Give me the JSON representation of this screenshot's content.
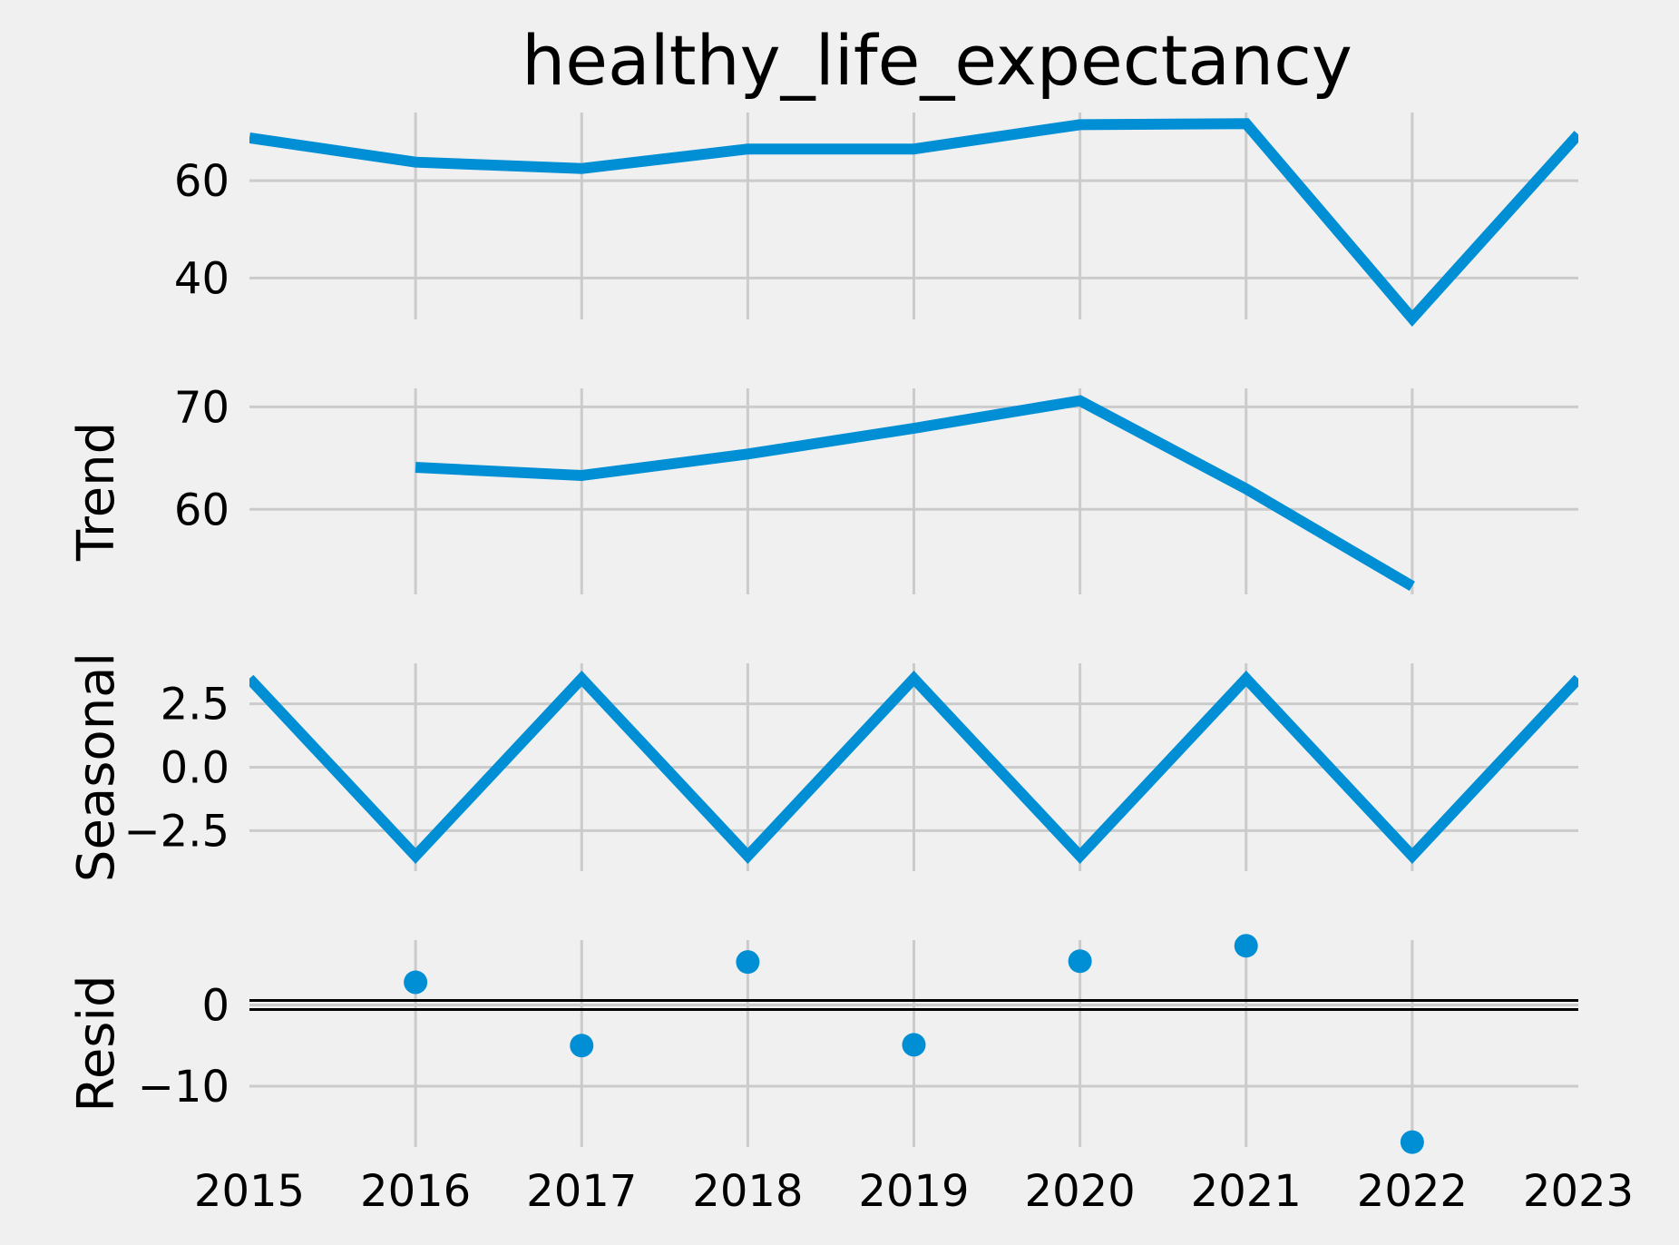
{
  "chart_data": {
    "type": "line",
    "title": "healthy_life_expectancy",
    "x": [
      2015,
      2016,
      2017,
      2018,
      2019,
      2020,
      2021,
      2022,
      2023
    ],
    "xticks": [
      "2015",
      "2016",
      "2017",
      "2018",
      "2019",
      "2020",
      "2021",
      "2022",
      "2023"
    ],
    "xlim": [
      2015,
      2023
    ],
    "colors": {
      "series": "#008fd5",
      "background": "#f0f0f0",
      "grid": "#cbcbcb"
    },
    "grid": true,
    "panels": [
      {
        "id": "observed",
        "ylabel": "",
        "style": "line",
        "ylim": [
          31.5,
          74
        ],
        "yticks": [
          40,
          60
        ],
        "yticklabels": [
          "40",
          "60"
        ],
        "values": [
          68.8,
          63.8,
          62.5,
          66.5,
          66.5,
          71.5,
          71.7,
          31.7,
          69.5
        ]
      },
      {
        "id": "trend",
        "ylabel": "Trend",
        "style": "line",
        "ylim": [
          51.7,
          71.8
        ],
        "yticks": [
          60,
          70
        ],
        "yticklabels": [
          "60",
          "70"
        ],
        "values": [
          null,
          64.1,
          63.3,
          65.4,
          67.9,
          70.6,
          62.0,
          52.5,
          null
        ]
      },
      {
        "id": "seasonal",
        "ylabel": "Seasonal",
        "style": "line",
        "ylim": [
          -4.1,
          4.1
        ],
        "yticks": [
          2.5,
          0,
          -2.5
        ],
        "yticklabels": [
          "2.5",
          "0.0",
          "−2.5"
        ],
        "values": [
          3.5,
          -3.5,
          3.5,
          -3.5,
          3.5,
          -3.5,
          3.5,
          -3.5,
          3.5
        ]
      },
      {
        "id": "resid",
        "ylabel": "Resid",
        "style": "scatter",
        "ylim": [
          -17.5,
          8.0
        ],
        "yticks": [
          0,
          -10
        ],
        "yticklabels": [
          "0",
          "−10"
        ],
        "zero_line": true,
        "values": [
          null,
          2.8,
          -5.0,
          5.3,
          -4.9,
          5.4,
          7.3,
          -16.9,
          null
        ]
      }
    ]
  }
}
